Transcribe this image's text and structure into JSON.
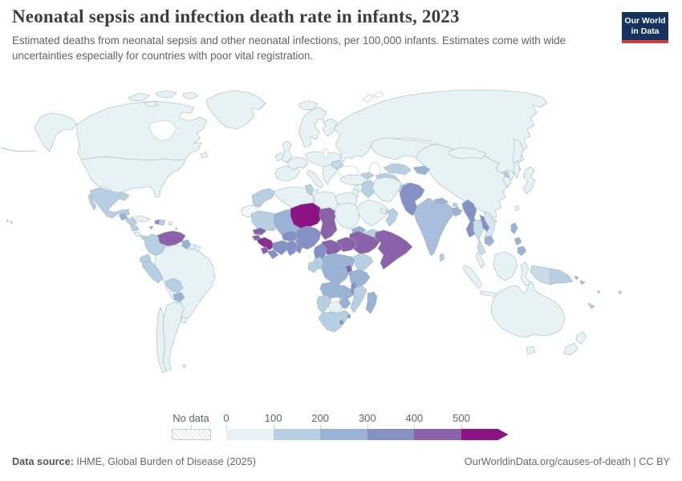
{
  "header": {
    "title": "Neonatal sepsis and infection death rate in infants, 2023",
    "subtitle": "Estimated deaths from neonatal sepsis and other neonatal infections, per 100,000 infants. Estimates come with wide uncertainties especially for countries with poor vital registration.",
    "logo": {
      "line1": "Our World",
      "line2": "in Data",
      "bg_color": "#16335e",
      "accent_color": "#d8393c"
    }
  },
  "legend": {
    "no_data_label": "No data"
  },
  "footer": {
    "source_label": "Data source:",
    "source_value": " IHME, Global Burden of Disease (2025)",
    "credit": "OurWorldinData.org/causes-of-death | CC BY"
  },
  "chart_data": {
    "type": "choropleth_map",
    "title": "Neonatal sepsis and infection death rate in infants, 2023",
    "unit": "deaths per 100,000 infants",
    "year": 2023,
    "legend_ticks": [
      "0",
      "100",
      "200",
      "300",
      "400",
      "500"
    ],
    "bins": [
      {
        "range": "0-100",
        "color": "#e7f2f5"
      },
      {
        "range": "100-200",
        "color": "#b7cfe3"
      },
      {
        "range": "200-300",
        "color": "#9ab3d5"
      },
      {
        "range": "300-400",
        "color": "#8590c5"
      },
      {
        "range": "400-500",
        "color": "#8a62aa"
      },
      {
        "range": "500+",
        "color": "#8c1383"
      }
    ],
    "no_data": {
      "label": "No data",
      "pattern": "diagonal-hatch"
    },
    "regions": [
      {
        "id": "canada",
        "bin": "0-100"
      },
      {
        "id": "usa",
        "bin": "0-100"
      },
      {
        "id": "greenland",
        "bin": "0-100"
      },
      {
        "id": "mexico",
        "bin": "100-200"
      },
      {
        "id": "guatemala",
        "bin": "200-300"
      },
      {
        "id": "belize",
        "bin": "100-200"
      },
      {
        "id": "honduras",
        "bin": "100-200"
      },
      {
        "id": "nicaragua",
        "bin": "100-200"
      },
      {
        "id": "costa-rica",
        "bin": "0-100"
      },
      {
        "id": "panama",
        "bin": "100-200"
      },
      {
        "id": "cuba",
        "bin": "0-100"
      },
      {
        "id": "jamaica",
        "bin": "200-300"
      },
      {
        "id": "haiti",
        "bin": "300-400"
      },
      {
        "id": "dominican-republic",
        "bin": "100-200"
      },
      {
        "id": "puerto-rico",
        "bin": "0-100"
      },
      {
        "id": "lesser-antilles",
        "bin": "200-300"
      },
      {
        "id": "venezuela",
        "bin": "400-500"
      },
      {
        "id": "colombia",
        "bin": "100-200"
      },
      {
        "id": "guyana",
        "bin": "200-300"
      },
      {
        "id": "suriname",
        "bin": "0-100"
      },
      {
        "id": "french-guiana",
        "bin": "0-100"
      },
      {
        "id": "ecuador",
        "bin": "100-200"
      },
      {
        "id": "peru",
        "bin": "100-200"
      },
      {
        "id": "brazil",
        "bin": "0-100"
      },
      {
        "id": "bolivia",
        "bin": "100-200"
      },
      {
        "id": "paraguay",
        "bin": "200-300"
      },
      {
        "id": "uruguay",
        "bin": "0-100"
      },
      {
        "id": "argentina",
        "bin": "0-100"
      },
      {
        "id": "chile",
        "bin": "0-100"
      },
      {
        "id": "falklands",
        "bin": "0-100"
      },
      {
        "id": "iceland",
        "bin": "0-100"
      },
      {
        "id": "ireland",
        "bin": "0-100"
      },
      {
        "id": "uk",
        "bin": "0-100"
      },
      {
        "id": "scandinavia",
        "bin": "0-100"
      },
      {
        "id": "finland",
        "bin": "0-100"
      },
      {
        "id": "iberia",
        "bin": "0-100"
      },
      {
        "id": "france",
        "bin": "0-100"
      },
      {
        "id": "central-europe",
        "bin": "0-100"
      },
      {
        "id": "italy",
        "bin": "0-100"
      },
      {
        "id": "balkans",
        "bin": "0-100"
      },
      {
        "id": "romania",
        "bin": "100-200",
        "color": "#c5d7e8"
      },
      {
        "id": "russia",
        "bin": "0-100"
      },
      {
        "id": "turkey",
        "bin": "0-100"
      },
      {
        "id": "syria",
        "bin": "0-100"
      },
      {
        "id": "levant",
        "bin": "0-100"
      },
      {
        "id": "iraq",
        "bin": "100-200"
      },
      {
        "id": "iran",
        "bin": "0-100"
      },
      {
        "id": "saudi-arabia",
        "bin": "0-100"
      },
      {
        "id": "yemen",
        "bin": "100-200"
      },
      {
        "id": "oman",
        "bin": "100-200"
      },
      {
        "id": "uae",
        "bin": "0-100"
      },
      {
        "id": "kazakhstan",
        "bin": "0-100"
      },
      {
        "id": "uzbekistan",
        "bin": "100-200"
      },
      {
        "id": "turkmenistan",
        "bin": "100-200"
      },
      {
        "id": "kyrgyz-tajik",
        "bin": "200-300"
      },
      {
        "id": "caucasus",
        "bin": "100-200"
      },
      {
        "id": "afghanistan",
        "bin": "100-200"
      },
      {
        "id": "pakistan",
        "bin": "300-400"
      },
      {
        "id": "india",
        "bin": "200-300",
        "color": "#a9bedd"
      },
      {
        "id": "nepal",
        "bin": "200-300"
      },
      {
        "id": "bhutan",
        "bin": "100-200"
      },
      {
        "id": "bangladesh",
        "bin": "200-300"
      },
      {
        "id": "sri-lanka",
        "bin": "100-200"
      },
      {
        "id": "myanmar",
        "bin": "300-400"
      },
      {
        "id": "thailand",
        "bin": "100-200",
        "color": "#cbdcea"
      },
      {
        "id": "laos",
        "bin": "300-400"
      },
      {
        "id": "vietnam",
        "bin": "0-100",
        "color": "#d8e7f0"
      },
      {
        "id": "cambodia",
        "bin": "200-300"
      },
      {
        "id": "malaysia",
        "bin": "0-100"
      },
      {
        "id": "china",
        "bin": "0-100"
      },
      {
        "id": "mongolia",
        "bin": "0-100"
      },
      {
        "id": "north-korea",
        "bin": "100-200"
      },
      {
        "id": "south-korea",
        "bin": "0-100"
      },
      {
        "id": "japan",
        "bin": "0-100"
      },
      {
        "id": "taiwan",
        "bin": "0-100"
      },
      {
        "id": "hainan",
        "bin": "0-100"
      },
      {
        "id": "philippines",
        "bin": "200-300"
      },
      {
        "id": "indonesia",
        "bin": "0-100"
      },
      {
        "id": "timor-leste",
        "bin": "100-200"
      },
      {
        "id": "west-papua",
        "bin": "100-200",
        "color": "#c9dbe9"
      },
      {
        "id": "papua-new-guinea",
        "bin": "100-200"
      },
      {
        "id": "australia",
        "bin": "0-100"
      },
      {
        "id": "new-zealand",
        "bin": "0-100"
      },
      {
        "id": "solomon-islands",
        "bin": "200-300"
      },
      {
        "id": "vanuatu",
        "bin": "100-200"
      },
      {
        "id": "new-caledonia",
        "bin": "100-200"
      },
      {
        "id": "fiji",
        "bin": "100-200"
      },
      {
        "id": "morocco",
        "bin": "100-200"
      },
      {
        "id": "western-sahara",
        "bin": "no-data"
      },
      {
        "id": "algeria",
        "bin": "0-100"
      },
      {
        "id": "tunisia",
        "bin": "100-200"
      },
      {
        "id": "libya",
        "bin": "0-100"
      },
      {
        "id": "egypt",
        "bin": "0-100"
      },
      {
        "id": "mauritania",
        "bin": "100-200"
      },
      {
        "id": "mali",
        "bin": "200-300"
      },
      {
        "id": "senegal",
        "bin": "400-500"
      },
      {
        "id": "guinea-bissau",
        "bin": "400-500"
      },
      {
        "id": "guinea",
        "bin": "500+",
        "color": "#8e2d90"
      },
      {
        "id": "sierra-leone",
        "bin": "400-500"
      },
      {
        "id": "liberia",
        "bin": "300-400"
      },
      {
        "id": "cote-divoire",
        "bin": "300-400"
      },
      {
        "id": "burkina-faso",
        "bin": "300-400"
      },
      {
        "id": "ghana",
        "bin": "300-400"
      },
      {
        "id": "togo-benin",
        "bin": "300-400"
      },
      {
        "id": "niger",
        "bin": "500+"
      },
      {
        "id": "nigeria",
        "bin": "300-400"
      },
      {
        "id": "chad",
        "bin": "400-500"
      },
      {
        "id": "sudan",
        "bin": "0-100"
      },
      {
        "id": "eritrea",
        "bin": "200-300"
      },
      {
        "id": "djibouti",
        "bin": "300-400"
      },
      {
        "id": "ethiopia",
        "bin": "400-500"
      },
      {
        "id": "somalia",
        "bin": "400-500"
      },
      {
        "id": "south-sudan",
        "bin": "400-500"
      },
      {
        "id": "central-african-republic",
        "bin": "400-500"
      },
      {
        "id": "cameroon",
        "bin": "300-400"
      },
      {
        "id": "drc",
        "bin": "200-300"
      },
      {
        "id": "congo",
        "bin": "100-200"
      },
      {
        "id": "gabon",
        "bin": "100-200"
      },
      {
        "id": "uganda",
        "bin": "200-300"
      },
      {
        "id": "kenya",
        "bin": "100-200"
      },
      {
        "id": "rwanda-burundi",
        "bin": "400-500"
      },
      {
        "id": "tanzania",
        "bin": "200-300"
      },
      {
        "id": "angola",
        "bin": "200-300"
      },
      {
        "id": "zambia",
        "bin": "200-300"
      },
      {
        "id": "malawi",
        "bin": "300-400"
      },
      {
        "id": "mozambique",
        "bin": "100-200"
      },
      {
        "id": "zimbabwe",
        "bin": "200-300"
      },
      {
        "id": "botswana",
        "bin": "0-100"
      },
      {
        "id": "namibia",
        "bin": "100-200"
      },
      {
        "id": "south-africa",
        "bin": "100-200"
      },
      {
        "id": "lesotho",
        "bin": "300-400"
      },
      {
        "id": "eswatini",
        "bin": "300-400"
      },
      {
        "id": "madagascar",
        "bin": "200-300"
      }
    ]
  }
}
